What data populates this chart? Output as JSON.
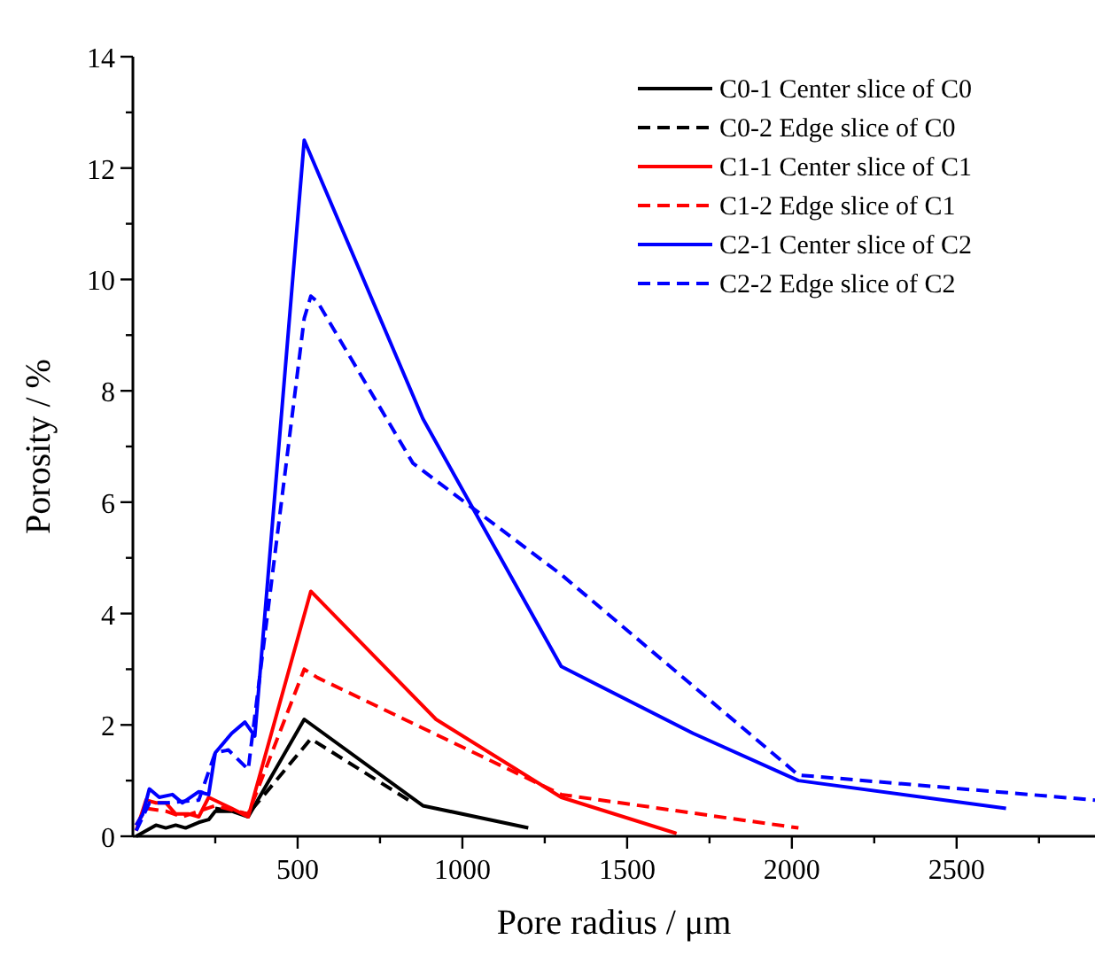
{
  "chart_data": {
    "type": "line",
    "xlabel": "Pore radius / μm",
    "ylabel": "Porosity / %",
    "xlim": [
      0,
      2920
    ],
    "ylim": [
      0,
      14
    ],
    "xticks": [
      {
        "value": 250,
        "label": null
      },
      500,
      {
        "value": 750,
        "label": null
      },
      1000,
      {
        "value": 1250,
        "label": null
      },
      1500,
      {
        "value": 1750,
        "label": null
      },
      2000,
      {
        "value": 2250,
        "label": null
      },
      2500,
      {
        "value": 2750,
        "label": null
      }
    ],
    "yticks": [
      0,
      {
        "value": 1,
        "label": null
      },
      2,
      {
        "value": 3,
        "label": null
      },
      4,
      {
        "value": 5,
        "label": null
      },
      6,
      {
        "value": 7,
        "label": null
      },
      8,
      {
        "value": 9,
        "label": null
      },
      10,
      {
        "value": 11,
        "label": null
      },
      12,
      {
        "value": 13,
        "label": null
      },
      14
    ],
    "legend": "top right",
    "grid": false,
    "series": [
      {
        "name": "C0-1 Center slice of C0",
        "color": "#000000",
        "line_style": "solid",
        "x": [
          10,
          40,
          70,
          100,
          130,
          160,
          200,
          230,
          250,
          300,
          350,
          520,
          880,
          1200
        ],
        "values": [
          0.0,
          0.1,
          0.2,
          0.15,
          0.2,
          0.15,
          0.25,
          0.3,
          0.45,
          0.45,
          0.35,
          2.1,
          0.55,
          0.15
        ]
      },
      {
        "name": "C0-2 Edge slice of C0",
        "color": "#000000",
        "line_style": "dashed",
        "x": [
          250,
          350,
          540,
          850
        ],
        "values": [
          0.5,
          0.4,
          1.75,
          0.6
        ]
      },
      {
        "name": "C1-1 Center slice of C1",
        "color": "#ff0000",
        "line_style": "solid",
        "x": [
          10,
          40,
          70,
          100,
          130,
          170,
          200,
          230,
          300,
          350,
          540,
          920,
          1300,
          1650
        ],
        "values": [
          0.1,
          0.65,
          0.6,
          0.6,
          0.4,
          0.4,
          0.35,
          0.7,
          0.5,
          0.35,
          4.4,
          2.1,
          0.7,
          0.05
        ]
      },
      {
        "name": "C1-2 Edge slice of C1",
        "color": "#ff0000",
        "line_style": "dashed",
        "x": [
          10,
          40,
          100,
          150,
          250,
          350,
          520,
          560,
          1300,
          2020
        ],
        "values": [
          0.2,
          0.5,
          0.45,
          0.35,
          0.55,
          0.4,
          3.0,
          2.85,
          0.75,
          0.15
        ]
      },
      {
        "name": "C2-1 Center slice of C2",
        "color": "#0000ff",
        "line_style": "solid",
        "x": [
          10,
          30,
          50,
          80,
          120,
          150,
          200,
          230,
          250,
          300,
          340,
          370,
          520,
          880,
          1300,
          1700,
          2020,
          2650
        ],
        "values": [
          0.2,
          0.4,
          0.85,
          0.7,
          0.75,
          0.6,
          0.8,
          0.75,
          1.5,
          1.85,
          2.05,
          1.8,
          12.5,
          7.5,
          3.05,
          1.85,
          1.0,
          0.5
        ]
      },
      {
        "name": "C2-2 Edge slice of C2",
        "color": "#0000ff",
        "line_style": "dashed",
        "x": [
          10,
          50,
          100,
          200,
          250,
          290,
          350,
          520,
          540,
          560,
          850,
          1300,
          2020,
          2920
        ],
        "values": [
          0.1,
          0.6,
          0.6,
          0.65,
          1.5,
          1.55,
          1.2,
          9.3,
          9.7,
          9.6,
          6.7,
          4.7,
          1.1,
          0.65
        ]
      }
    ]
  }
}
